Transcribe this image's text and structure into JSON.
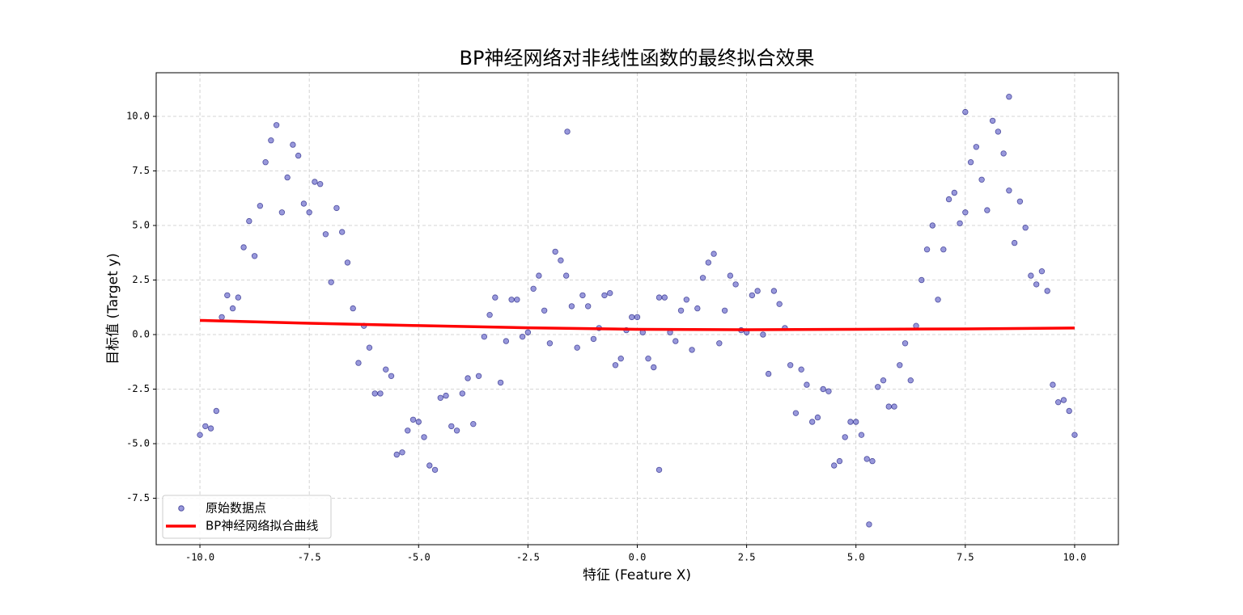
{
  "chart_data": {
    "type": "scatter",
    "title": "BP神经网络对非线性函数的最终拟合效果",
    "x_label": "特征 (Feature X)",
    "y_label": "目标值 (Target y)",
    "xlim": [
      -11,
      11
    ],
    "ylim": [
      -9.63,
      12.0
    ],
    "xticks": [
      {
        "value": -10,
        "label": "-10.0"
      },
      -7.5,
      {
        "value": -5,
        "label": "-5.0"
      },
      -2.5,
      {
        "value": 0,
        "label": "0.0"
      },
      2.5,
      {
        "value": 5,
        "label": "5.0"
      },
      7.5,
      {
        "value": 10,
        "label": "10.0"
      }
    ],
    "yticks": [
      -7.5,
      {
        "value": -5,
        "label": "-5.0"
      },
      -2.5,
      {
        "value": 0,
        "label": "0.0"
      },
      2.5,
      {
        "value": 5,
        "label": "5.0"
      },
      7.5,
      {
        "value": 10,
        "label": "10.0"
      }
    ],
    "grid": true,
    "legend": "lower left",
    "series": [
      {
        "name": "原始数据点",
        "type": "scatter",
        "color": "#1a1ab0",
        "x": [
          -10,
          -9.75,
          -9.5,
          -9.25,
          -9,
          -8.75,
          -8.5,
          -8.25,
          -8,
          -7.75,
          -7.5,
          -7.25,
          -7,
          -6.75,
          -6.5,
          -6.25,
          -6,
          -5.75,
          -5.5,
          -5.25,
          -5,
          -4.75,
          -4.5,
          -4.25,
          -4,
          -3.75,
          -3.5,
          -3.25,
          -3,
          -2.75,
          -2.5,
          -2.25,
          -2,
          -1.75,
          -1.5,
          -1.25,
          -1,
          -0.75,
          -0.5,
          -0.25,
          0,
          0.25,
          0.5,
          0.75,
          1,
          1.25,
          1.5,
          1.75,
          2,
          2.25,
          2.5,
          2.75,
          3,
          3.25,
          3.5,
          3.75,
          4,
          4.25,
          4.5,
          4.75,
          5,
          5.25,
          5.5,
          5.75,
          6,
          6.25,
          6.5,
          6.75,
          7,
          7.25,
          7.5,
          7.75,
          8,
          8.25,
          8.5,
          8.75,
          9,
          9.25,
          9.5,
          9.75,
          10,
          -9.875,
          -9.625,
          -9.375,
          -9.125,
          -8.875,
          -8.625,
          -8.375,
          -8.125,
          -7.875,
          -7.625,
          -7.375,
          -7.125,
          -6.875,
          -6.625,
          -6.375,
          -6.125,
          -5.875,
          -5.625,
          -5.375,
          -5.125,
          -4.875,
          -4.625,
          -4.375,
          -4.125,
          -3.875,
          -3.625,
          -3.375,
          -3.125,
          -2.875,
          -2.625,
          -2.375,
          -2.125,
          -1.875,
          -1.625,
          -1.375,
          -1.125,
          -0.875,
          -0.625,
          -0.375,
          -0.125,
          0.125,
          0.375,
          0.625,
          0.875,
          1.125,
          1.375,
          1.625,
          1.875,
          2.125,
          2.375,
          2.625,
          2.875,
          3.125,
          3.375,
          3.625,
          3.875,
          4.125,
          4.375,
          4.625,
          4.875,
          5.125,
          5.375,
          5.625,
          5.875,
          6.125,
          6.375,
          6.625,
          6.875,
          7.125,
          7.375,
          7.625,
          7.875,
          8.125,
          8.375,
          8.625,
          8.875,
          9.125,
          9.375,
          9.625,
          9.875,
          -1.6,
          0.5,
          5.3,
          8.5,
          7.5
        ],
        "values": [
          -4.6,
          -4.3,
          0.8,
          1.2,
          4.0,
          3.6,
          7.9,
          9.6,
          7.2,
          8.2,
          5.6,
          6.9,
          2.4,
          4.7,
          1.2,
          0.4,
          -2.7,
          -1.6,
          -5.5,
          -4.4,
          -4.0,
          -6.0,
          -2.9,
          -4.2,
          -2.7,
          -4.1,
          -0.1,
          1.7,
          -0.3,
          1.6,
          0.1,
          2.7,
          -0.4,
          3.4,
          1.3,
          1.8,
          -0.2,
          1.8,
          -1.4,
          0.2,
          0.8,
          -1.1,
          1.7,
          0.1,
          1.1,
          -0.7,
          2.6,
          3.7,
          1.1,
          2.3,
          0.1,
          2.0,
          -1.8,
          1.4,
          -1.4,
          -1.6,
          -4.0,
          -2.5,
          -6.0,
          -4.7,
          -4.0,
          -5.7,
          -2.4,
          -3.3,
          -1.4,
          -2.1,
          2.5,
          5.0,
          3.9,
          6.5,
          5.6,
          8.6,
          5.7,
          9.3,
          6.6,
          6.1,
          2.7,
          2.9,
          -2.3,
          -3.0,
          -4.6,
          -4.2,
          -3.5,
          1.8,
          1.7,
          5.2,
          5.9,
          8.9,
          5.6,
          8.7,
          6.0,
          7.0,
          4.6,
          5.8,
          3.3,
          -1.3,
          -0.6,
          -2.7,
          -1.9,
          -5.4,
          -3.9,
          -4.7,
          -6.2,
          -2.8,
          -4.4,
          -2.0,
          -1.9,
          0.9,
          -2.2,
          1.6,
          -0.1,
          2.1,
          1.1,
          3.8,
          2.7,
          -0.6,
          1.3,
          0.3,
          1.9,
          -1.1,
          0.8,
          0.1,
          -1.5,
          1.7,
          -0.3,
          1.6,
          1.2,
          3.3,
          -0.4,
          2.7,
          0.2,
          1.8,
          0.0,
          2.0,
          0.3,
          -3.6,
          -2.3,
          -3.8,
          -2.6,
          -5.8,
          -4.0,
          -4.6,
          -5.8,
          -2.1,
          -3.3,
          -0.4,
          0.4,
          3.9,
          1.6,
          6.2,
          5.1,
          7.9,
          7.1,
          9.8,
          8.3,
          4.2,
          4.9,
          2.3,
          2.0,
          -3.1,
          -3.5,
          9.3,
          -6.2,
          -8.7,
          10.9,
          10.2
        ]
      },
      {
        "name": "BP神经网络拟合曲线",
        "type": "line",
        "color": "#ff0000",
        "x": [
          -10,
          -7.5,
          -5,
          -2.5,
          0,
          2.5,
          5,
          7.5,
          10
        ],
        "values": [
          0.65,
          0.52,
          0.41,
          0.31,
          0.24,
          0.22,
          0.24,
          0.26,
          0.3
        ]
      }
    ]
  }
}
